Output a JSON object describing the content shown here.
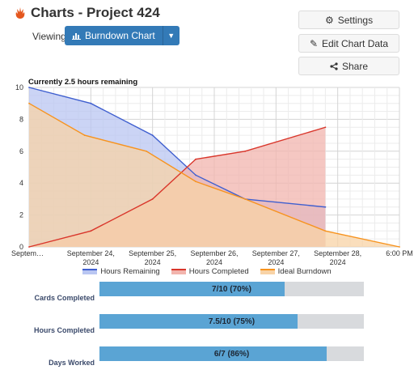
{
  "header": {
    "title": "Charts - Project 424"
  },
  "toolbar": {
    "viewing_label": "Viewing",
    "chart_select_label": "Burndown Chart",
    "settings_label": "Settings",
    "edit_label": "Edit Chart Data",
    "share_label": "Share"
  },
  "chart": {
    "subtitle": "Currently 2.5 hours remaining"
  },
  "colors": {
    "remaining": "#3f5fcf",
    "completed": "#d9362b",
    "ideal": "#f7931e",
    "brand_blue": "#337ab7",
    "progress_fill": "#5aa4d4"
  },
  "chart_data": {
    "type": "area",
    "title": "Currently 2.5 hours remaining",
    "categories": [
      "Septem…",
      "September 24, 2024",
      "September 25, 2024",
      "September 26, 2024",
      "September 27, 2024",
      "September 28, 2024",
      "6:00 PM"
    ],
    "x": [
      0,
      1,
      2,
      3,
      4,
      5,
      6
    ],
    "ylim": [
      0,
      10
    ],
    "yticks": [
      0,
      2,
      4,
      6,
      8,
      10
    ],
    "grid": true,
    "legend_position": "bottom",
    "series": [
      {
        "name": "Hours Remaining",
        "color": "#3f5fcf",
        "fill": "#b9c6f2",
        "x": [
          0,
          1,
          2,
          2.7,
          3.5,
          4.8
        ],
        "values": [
          10,
          9,
          7,
          4.5,
          3,
          2.5
        ]
      },
      {
        "name": "Hours Completed",
        "color": "#d9362b",
        "fill": "#f2b4ad",
        "x": [
          0,
          1,
          2,
          2.7,
          3.5,
          4.8
        ],
        "values": [
          0,
          1,
          3,
          5.5,
          6,
          7.5
        ]
      },
      {
        "name": "Ideal Burndown",
        "color": "#f7931e",
        "fill": "#f8d3a6",
        "x": [
          0,
          0.9,
          1.9,
          2.7,
          3.5,
          4.8,
          6
        ],
        "values": [
          9,
          7,
          6,
          4.1,
          3,
          1,
          0
        ]
      }
    ]
  },
  "stats": [
    {
      "label": "Cards Completed",
      "text": "7/10 (70%)",
      "fraction": 0.7
    },
    {
      "label": "Hours Completed",
      "text": "7.5/10 (75%)",
      "fraction": 0.75
    },
    {
      "label": "Days Worked",
      "text": "6/7 (86%)",
      "fraction": 0.86
    }
  ]
}
